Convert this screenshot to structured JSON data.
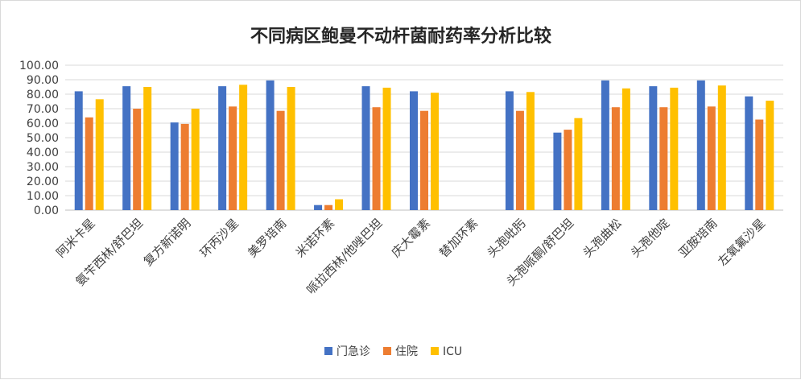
{
  "chart_data": {
    "type": "bar",
    "title": "不同病区鲍曼不动杆菌耐药率分析比较",
    "xlabel": "",
    "ylabel": "",
    "ylim": [
      0,
      100
    ],
    "yticks": [
      "0.00",
      "10.00",
      "20.00",
      "30.00",
      "40.00",
      "50.00",
      "60.00",
      "70.00",
      "80.00",
      "90.00",
      "100.00"
    ],
    "grid": true,
    "legend_position": "bottom",
    "categories": [
      "阿米卡星",
      "氨苄西林/舒巴坦",
      "复方新诺明",
      "环丙沙星",
      "美罗培南",
      "米诺环素",
      "哌拉西林/他唑巴坦",
      "庆大霉素",
      "替加环素",
      "头孢吡肟",
      "头孢哌酮/舒巴坦",
      "头孢曲松",
      "头孢他啶",
      "亚胺培南",
      "左氧氟沙星"
    ],
    "series": [
      {
        "name": "门急诊",
        "color": "#4472C4",
        "values": [
          82,
          85.5,
          60.5,
          85.5,
          89.5,
          3.5,
          85.5,
          82,
          0,
          82,
          53.5,
          89.5,
          85.5,
          89.5,
          78.5
        ]
      },
      {
        "name": "住院",
        "color": "#ED7D31",
        "values": [
          64,
          70,
          59.5,
          71.5,
          68.5,
          3.5,
          71,
          68.5,
          0,
          68.5,
          55.5,
          71,
          71,
          71.5,
          62.5
        ]
      },
      {
        "name": "ICU",
        "color": "#FFC000",
        "values": [
          76.5,
          85,
          70,
          86.5,
          85,
          7.5,
          84.5,
          81,
          0,
          81.5,
          63.5,
          84,
          84.5,
          86,
          75.5
        ]
      }
    ]
  }
}
